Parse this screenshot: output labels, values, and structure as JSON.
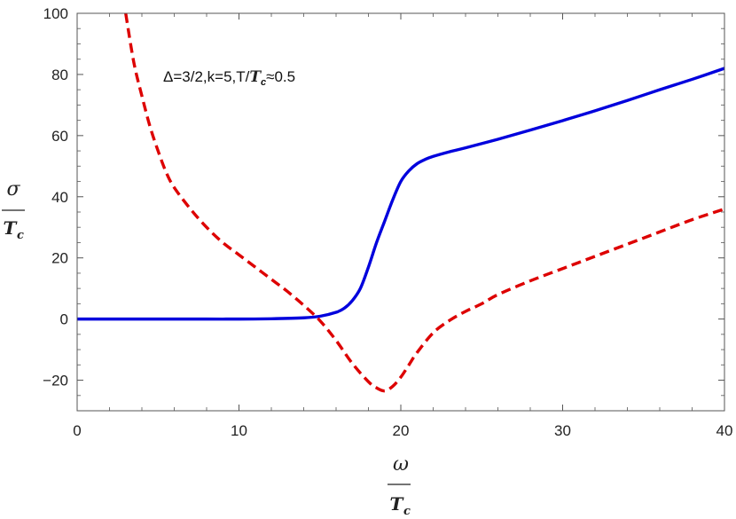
{
  "chart_data": {
    "type": "line",
    "annotation": {
      "prefix": "Δ=3/2,k=5,T/",
      "T": "T",
      "sub": "c",
      "suffix": "≈0.5"
    },
    "xlabel": {
      "numerator": "ω",
      "denominator_T": "T",
      "denominator_sub": "c"
    },
    "ylabel": {
      "numerator": "σ",
      "denominator_T": "T",
      "denominator_sub": "c"
    },
    "xlim": [
      0,
      40
    ],
    "ylim": [
      -30,
      100
    ],
    "xticks": [
      0,
      10,
      20,
      30,
      40
    ],
    "xtick_labels": [
      "0",
      "10",
      "20",
      "30",
      "40"
    ],
    "yticks": [
      -20,
      0,
      20,
      40,
      60,
      80,
      100
    ],
    "ytick_labels": [
      "−20",
      "0",
      "20",
      "40",
      "60",
      "80",
      "100"
    ],
    "grid": false,
    "series": [
      {
        "color": "#0000dd",
        "style": "solid",
        "x": [
          0,
          2,
          4,
          6,
          8,
          10,
          12,
          14,
          15,
          16,
          16.5,
          17,
          17.5,
          18,
          18.5,
          19,
          19.5,
          20,
          20.5,
          21,
          21.5,
          22,
          23,
          24,
          26,
          28,
          30,
          32,
          34,
          36,
          38,
          40
        ],
        "y": [
          0,
          0,
          0,
          0,
          0,
          0,
          0.1,
          0.4,
          0.9,
          2.2,
          3.5,
          6,
          10,
          17,
          25,
          32,
          39,
          45,
          48.5,
          50.8,
          52.2,
          53.2,
          54.7,
          56,
          58.8,
          61.8,
          64.9,
          68.1,
          71.5,
          75,
          78.4,
          82
        ]
      },
      {
        "color": "#dd0000",
        "style": "dashed",
        "x": [
          3,
          3.5,
          4,
          4.5,
          5,
          5.5,
          6,
          7,
          8,
          9,
          10,
          11,
          12,
          13,
          14,
          15,
          16,
          17,
          18,
          18.5,
          19,
          19.5,
          20,
          20.5,
          21,
          22,
          23,
          24,
          25,
          26,
          28,
          30,
          32,
          34,
          36,
          38,
          40
        ],
        "y": [
          100,
          84,
          73,
          63,
          55,
          48,
          43,
          36,
          30,
          25,
          21,
          17,
          13,
          9,
          4.5,
          -0.5,
          -7,
          -14.5,
          -20.5,
          -22.5,
          -23.5,
          -22,
          -19,
          -15,
          -11,
          -4.5,
          -0.5,
          2.5,
          5,
          8,
          12.5,
          16.5,
          20.5,
          24.5,
          28.5,
          32.5,
          36
        ]
      }
    ]
  }
}
